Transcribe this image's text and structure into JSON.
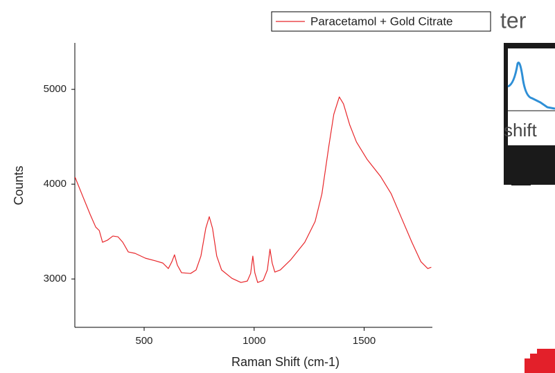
{
  "chart_data": {
    "type": "line",
    "x_label": "Raman Shift (cm-1)",
    "y_label": "Counts",
    "x": [
      186,
      223,
      255,
      280,
      296,
      311,
      333,
      358,
      381,
      403,
      428,
      459,
      506,
      553,
      585,
      610,
      626,
      638,
      651,
      670,
      711,
      736,
      758,
      780,
      796,
      811,
      830,
      852,
      899,
      940,
      969,
      984,
      994,
      1003,
      1016,
      1041,
      1060,
      1072,
      1082,
      1094,
      1119,
      1167,
      1230,
      1277,
      1308,
      1340,
      1362,
      1387,
      1406,
      1434,
      1465,
      1513,
      1575,
      1623,
      1670,
      1717,
      1758,
      1789,
      1805
    ],
    "series": [
      {
        "name": "Paracetamol + Gold Citrate",
        "color": "#e8262a",
        "values": [
          4073,
          3861,
          3679,
          3547,
          3511,
          3387,
          3409,
          3453,
          3445,
          3387,
          3285,
          3270,
          3219,
          3190,
          3168,
          3110,
          3182,
          3255,
          3146,
          3066,
          3058,
          3095,
          3241,
          3533,
          3657,
          3533,
          3241,
          3095,
          3007,
          2963,
          2978,
          3058,
          3241,
          3066,
          2963,
          2985,
          3095,
          3314,
          3168,
          3073,
          3095,
          3204,
          3387,
          3606,
          3898,
          4409,
          4737,
          4920,
          4847,
          4628,
          4445,
          4263,
          4080,
          3898,
          3642,
          3387,
          3182,
          3110,
          3124
        ]
      }
    ],
    "xlim": [
      185,
      1810
    ],
    "ylim": [
      2490,
      5490
    ],
    "xticks": [
      500,
      1000,
      1500
    ],
    "yticks": [
      3000,
      4000,
      5000
    ],
    "legend": "top-right"
  },
  "background": {
    "texts": [
      "ter",
      "shift"
    ]
  }
}
